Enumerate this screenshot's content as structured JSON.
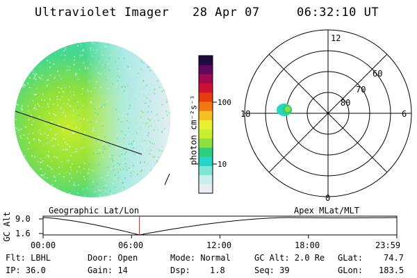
{
  "header": {
    "title": "Ultraviolet Imager",
    "date": "28 Apr 07",
    "time": "06:32:10 UT"
  },
  "colorbar": {
    "label": "photon cm⁻²s⁻¹",
    "tick_100": "100",
    "tick_10": "10",
    "colors": [
      "#e8eef2",
      "#c8eef0",
      "#7fe6d8",
      "#26d4c8",
      "#2ecf7a",
      "#8fe03a",
      "#c8ee2c",
      "#e8f030",
      "#f4c020",
      "#f47810",
      "#e83c10",
      "#d01030",
      "#a00850",
      "#600860",
      "#200a40"
    ]
  },
  "polar": {
    "mlt_labels": {
      "top": "12",
      "left": "18",
      "right": "6",
      "bottom": "0"
    },
    "lat_labels": [
      "60",
      "70",
      "80"
    ]
  },
  "timeline": {
    "left_label": "Geographic Lat/Lon",
    "right_label": "Apex MLat/MLT",
    "axis_label": "GC Alt",
    "y_top": "9.0",
    "y_bottom": "1.6",
    "x_ticks": [
      "00:00",
      "06:00",
      "12:00",
      "18:00",
      "23:59"
    ],
    "marker_time_hours": 6.536
  },
  "info": {
    "flt": "Flt: LBHL",
    "ip": "IP: 36.0",
    "door": "Door: Open",
    "gain": "Gain: 14",
    "mode": "Mode: Normal",
    "dsp_label": "Dsp:",
    "dsp_value": "1.8",
    "gcalt": "GC Alt: 2.0 Re",
    "seq": "Seq: 39",
    "glat": "GLat:",
    "glat_value": "74.7",
    "glon": "GLon:",
    "glon_value": "183.5"
  }
}
